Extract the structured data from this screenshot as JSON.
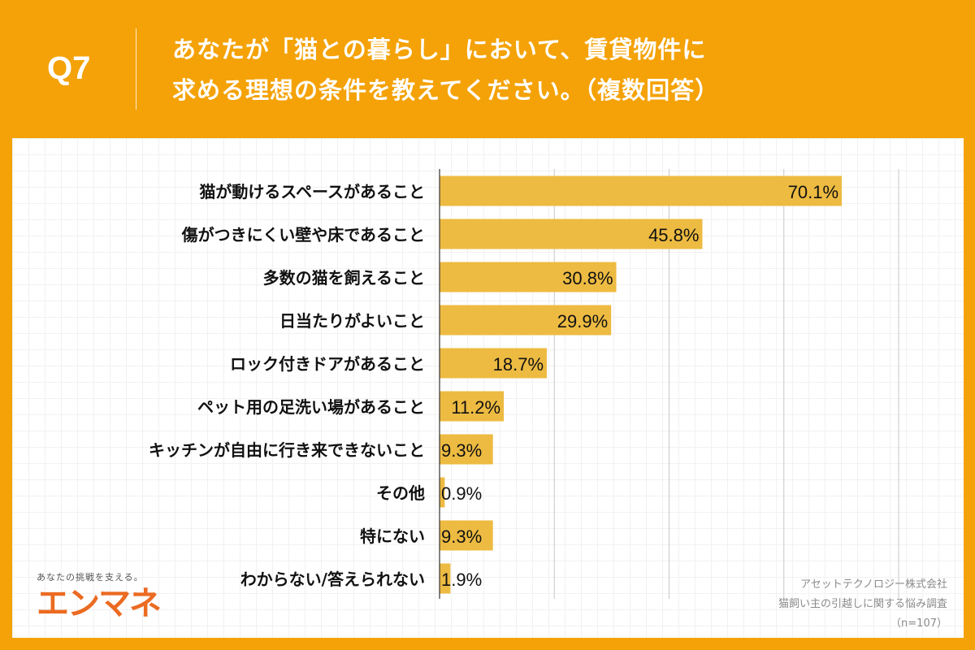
{
  "header": {
    "question_no": "Q7",
    "title_line1": "あなたが「猫との暮らし」において、賃貸物件に",
    "title_line2": "求める理想の条件を教えてください。（複数回答）"
  },
  "logo": {
    "tagline": "あなたの挑戦を支える。",
    "name": "エンマネ"
  },
  "source": {
    "company": "アセットテクノロジー株式会社",
    "survey": "猫飼い主の引越しに関する悩み調査",
    "n": "（n=107）"
  },
  "colors": {
    "background": "#F4A207",
    "bar": "#EDBB42",
    "logo": "#EB6B22"
  },
  "chart_data": {
    "type": "bar",
    "orientation": "horizontal",
    "xlim": [
      0,
      80
    ],
    "grid": true,
    "unit": "%",
    "categories": [
      "猫が動けるスペースがあること",
      "傷がつきにくい壁や床であること",
      "多数の猫を飼えること",
      "日当たりがよいこと",
      "ロック付きドアがあること",
      "ペット用の足洗い場があること",
      "キッチンが自由に行き来できないこと",
      "その他",
      "特にない",
      "わからない/答えられない"
    ],
    "values": [
      70.1,
      45.8,
      30.8,
      29.9,
      18.7,
      11.2,
      9.3,
      0.9,
      9.3,
      1.9
    ],
    "labels": [
      "70.1%",
      "45.8%",
      "30.8%",
      "29.9%",
      "18.7%",
      "11.2%",
      "9.3%",
      "0.9%",
      "9.3%",
      "1.9%"
    ]
  }
}
